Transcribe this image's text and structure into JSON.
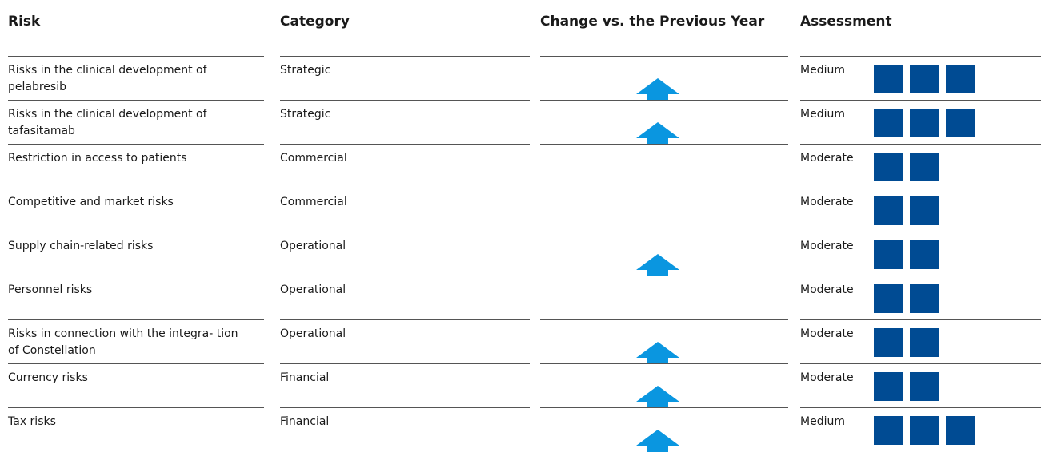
{
  "table": {
    "header": [
      "Risk",
      "Category",
      "Change vs. the Previous Year",
      "Assessment"
    ],
    "rows": [
      {
        "risk": "Risks in the clinical development of pelabresib",
        "category": "Strategic",
        "change_up": true,
        "assessment": "Medium",
        "squares": 3
      },
      {
        "risk": "Risks in the clinical development of tafasitamab",
        "category": "Strategic",
        "change_up": true,
        "assessment": "Medium",
        "squares": 3
      },
      {
        "risk": "Restriction in access to patients",
        "category": "Commercial",
        "change_up": false,
        "assessment": "Moderate",
        "squares": 2
      },
      {
        "risk": "Competitive and market risks",
        "category": "Commercial",
        "change_up": false,
        "assessment": "Moderate",
        "squares": 2
      },
      {
        "risk": "Supply chain-related risks",
        "category": "Operational",
        "change_up": true,
        "assessment": "Moderate",
        "squares": 2
      },
      {
        "risk": "Personnel risks",
        "category": "Operational",
        "change_up": false,
        "assessment": "Moderate",
        "squares": 2
      },
      {
        "risk": "Risks in connection with the integra- tion of Constellation",
        "category": "Operational",
        "change_up": true,
        "assessment": "Moderate",
        "squares": 2
      },
      {
        "risk": "Currency risks",
        "category": "Financial",
        "change_up": true,
        "assessment": "Moderate",
        "squares": 2
      },
      {
        "risk": "Tax risks",
        "category": "Financial",
        "change_up": true,
        "assessment": "Medium",
        "squares": 3
      }
    ]
  }
}
